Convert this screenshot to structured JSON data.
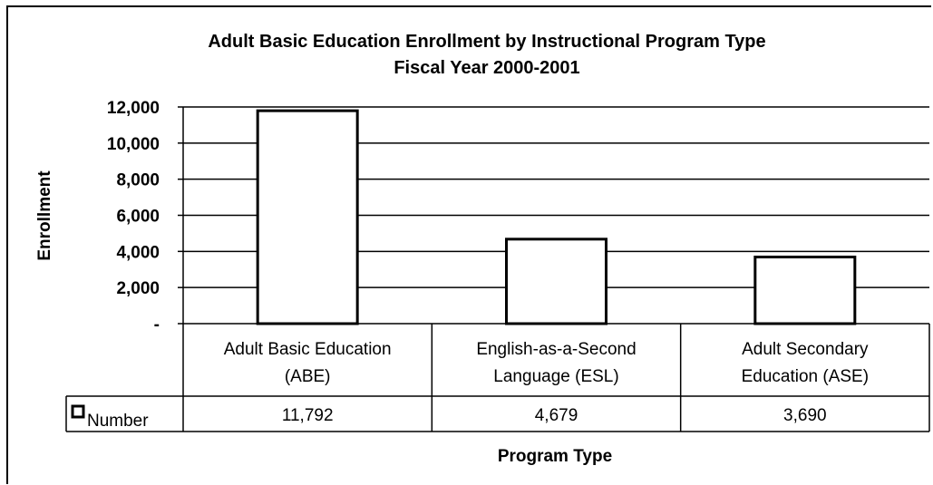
{
  "chart_data": {
    "type": "bar",
    "title": "Adult Basic Education Enrollment by Instructional Program Type",
    "subtitle": "Fiscal Year 2000-2001",
    "xlabel": "Program Type",
    "ylabel": "Enrollment",
    "categories": [
      [
        "Adult Basic Education",
        "(ABE)"
      ],
      [
        "English-as-a-Second",
        "Language (ESL)"
      ],
      [
        "Adult Secondary",
        "Education (ASE)"
      ]
    ],
    "series": [
      {
        "name": "Number",
        "values": [
          11792,
          4679,
          3690
        ],
        "labels": [
          "11,792",
          "4,679",
          "3,690"
        ]
      }
    ],
    "ylim": [
      0,
      12000
    ],
    "yticks": [
      0,
      2000,
      4000,
      6000,
      8000,
      10000,
      12000
    ],
    "ytick_labels": [
      "-",
      "2,000",
      "4,000",
      "6,000",
      "8,000",
      "10,000",
      "12,000"
    ],
    "grid": true,
    "legend": "data-table",
    "colors": {
      "bar_fill": "#ffffff",
      "bar_stroke": "#000000",
      "grid": "#000000"
    }
  }
}
